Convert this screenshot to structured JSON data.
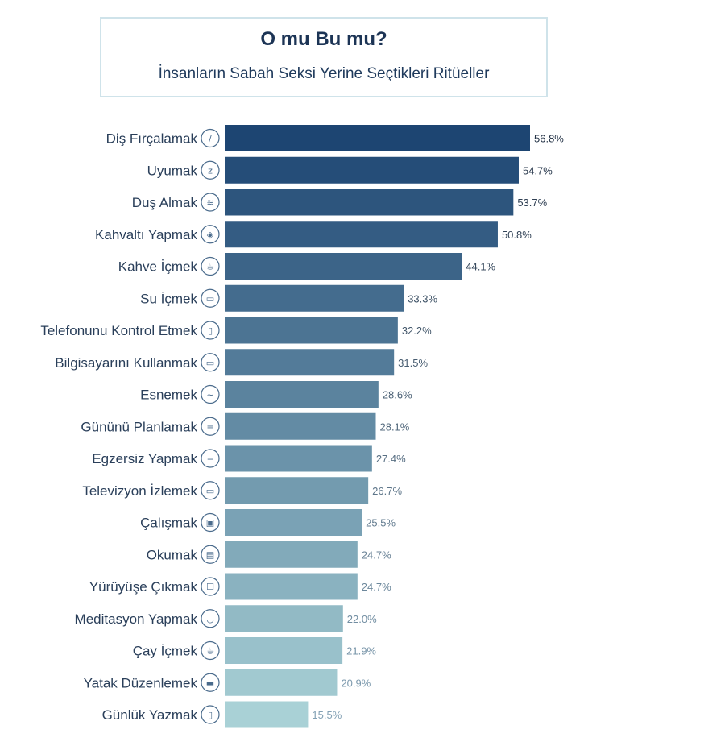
{
  "header": {
    "title": "O mu Bu mu?",
    "subtitle": "İnsanların Sabah Seksi Yerine Seçtikleri Ritüeller"
  },
  "colors": {
    "bar_start": "#1d4572",
    "bar_end": "#a9d1d6"
  },
  "chart_data": {
    "type": "bar",
    "orientation": "horizontal",
    "title": "O mu Bu mu?",
    "subtitle": "İnsanların Sabah Seksi Yerine Seçtikleri Ritüeller",
    "categories": [
      "Diş Fırçalamak",
      "Uyumak",
      "Duş Almak",
      "Kahvaltı Yapmak",
      "Kahve İçmek",
      "Su İçmek",
      "Telefonunu Kontrol Etmek",
      "Bilgisayarını Kullanmak",
      "Esnemek",
      "Gününü Planlamak",
      "Egzersiz Yapmak",
      "Televizyon İzlemek",
      "Çalışmak",
      "Okumak",
      "Yürüyüşe Çıkmak",
      "Meditasyon Yapmak",
      "Çay İçmek",
      "Yatak Düzenlemek",
      "Günlük Yazmak"
    ],
    "values": [
      56.8,
      54.7,
      53.7,
      50.8,
      44.1,
      33.3,
      32.2,
      31.5,
      28.6,
      28.1,
      27.4,
      26.7,
      25.5,
      24.7,
      24.7,
      22.0,
      21.9,
      20.9,
      15.5
    ],
    "value_labels": [
      "56.8%",
      "54.7%",
      "53.7%",
      "50.8%",
      "44.1%",
      "33.3%",
      "32.2%",
      "31.5%",
      "28.6%",
      "28.1%",
      "27.4%",
      "26.7%",
      "25.5%",
      "24.7%",
      "24.7%",
      "22.0%",
      "21.9%",
      "20.9%",
      "15.5%"
    ],
    "icons": [
      "toothbrush-icon",
      "sleep-zzz-icon",
      "shower-icon",
      "breakfast-icon",
      "coffee-icon",
      "water-glass-icon",
      "phone-icon",
      "computer-icon",
      "yawn-icon",
      "planner-icon",
      "dumbbell-icon",
      "tv-icon",
      "briefcase-icon",
      "book-icon",
      "walking-icon",
      "meditation-icon",
      "tea-icon",
      "bed-icon",
      "journal-icon"
    ],
    "icon_glyphs": [
      "/",
      "z",
      "≋",
      "◈",
      "☕",
      "▭",
      "▯",
      "▭",
      "~",
      "≡",
      "═",
      "▭",
      "▣",
      "▤",
      "☐",
      "◡",
      "☕",
      "▬",
      "▯"
    ],
    "xlabel": "",
    "ylabel": "",
    "xlim": [
      0,
      60
    ],
    "grid": false,
    "legend": "none"
  }
}
